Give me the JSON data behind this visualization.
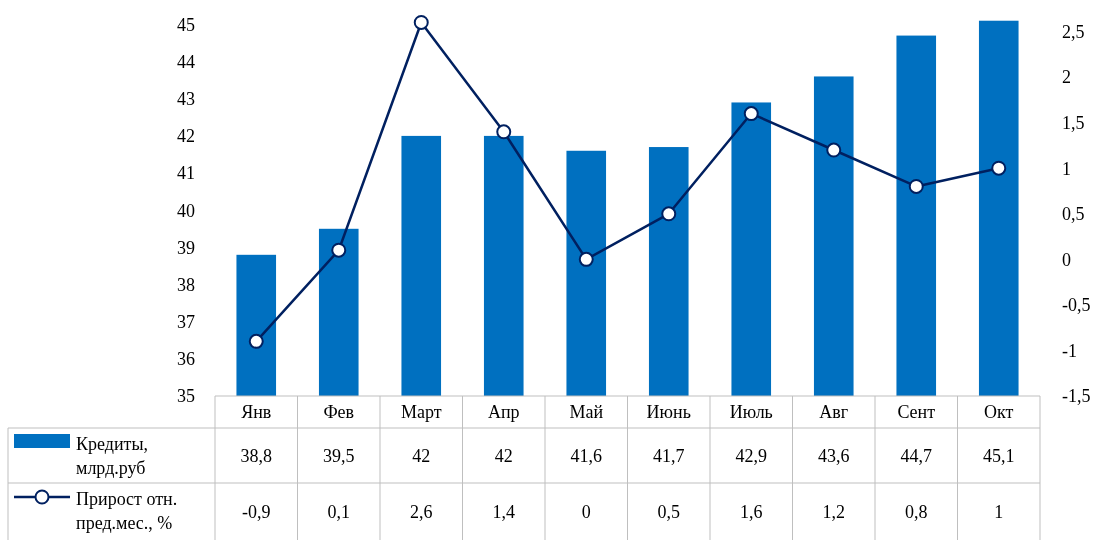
{
  "chart_data": {
    "type": "bar",
    "categories": [
      "Янв",
      "Фев",
      "Март",
      "Апр",
      "Май",
      "Июнь",
      "Июль",
      "Авг",
      "Сент",
      "Окт"
    ],
    "series": [
      {
        "name": "Кредиты, млрд.руб",
        "color": "#0070c0",
        "values": [
          38.8,
          39.5,
          42,
          42,
          41.6,
          41.7,
          42.9,
          43.6,
          44.7,
          45.1
        ],
        "value_labels": [
          "38,8",
          "39,5",
          "42",
          "42",
          "41,6",
          "41,7",
          "42,9",
          "43,6",
          "44,7",
          "45,1"
        ]
      },
      {
        "name": "Прирост отн. пред.мес., %",
        "type": "line",
        "axis": "y2",
        "color": "#002060",
        "marker": "circle",
        "values": [
          -0.9,
          0.1,
          2.6,
          1.4,
          0,
          0.5,
          1.6,
          1.2,
          0.8,
          1
        ],
        "value_labels": [
          "-0,9",
          "0,1",
          "2,6",
          "1,4",
          "0",
          "0,5",
          "1,6",
          "1,2",
          "0,8",
          "1"
        ]
      }
    ],
    "ylim": [
      35,
      45.2
    ],
    "yticks": [
      35,
      36,
      37,
      38,
      39,
      40,
      41,
      42,
      43,
      44,
      45
    ],
    "y2lim": [
      -1.5,
      2.66
    ],
    "y2ticks": [
      {
        "value": -1.5,
        "label": "-1,5"
      },
      {
        "value": -1,
        "label": "-1"
      },
      {
        "value": -0.5,
        "label": "-0,5"
      },
      {
        "value": 0,
        "label": "0"
      },
      {
        "value": 0.5,
        "label": "0,5"
      },
      {
        "value": 1,
        "label": "1"
      },
      {
        "value": 1.5,
        "label": "1,5"
      },
      {
        "value": 2,
        "label": "2"
      },
      {
        "value": 2.5,
        "label": "2,5"
      }
    ],
    "grid": false,
    "legend": "bottom"
  }
}
